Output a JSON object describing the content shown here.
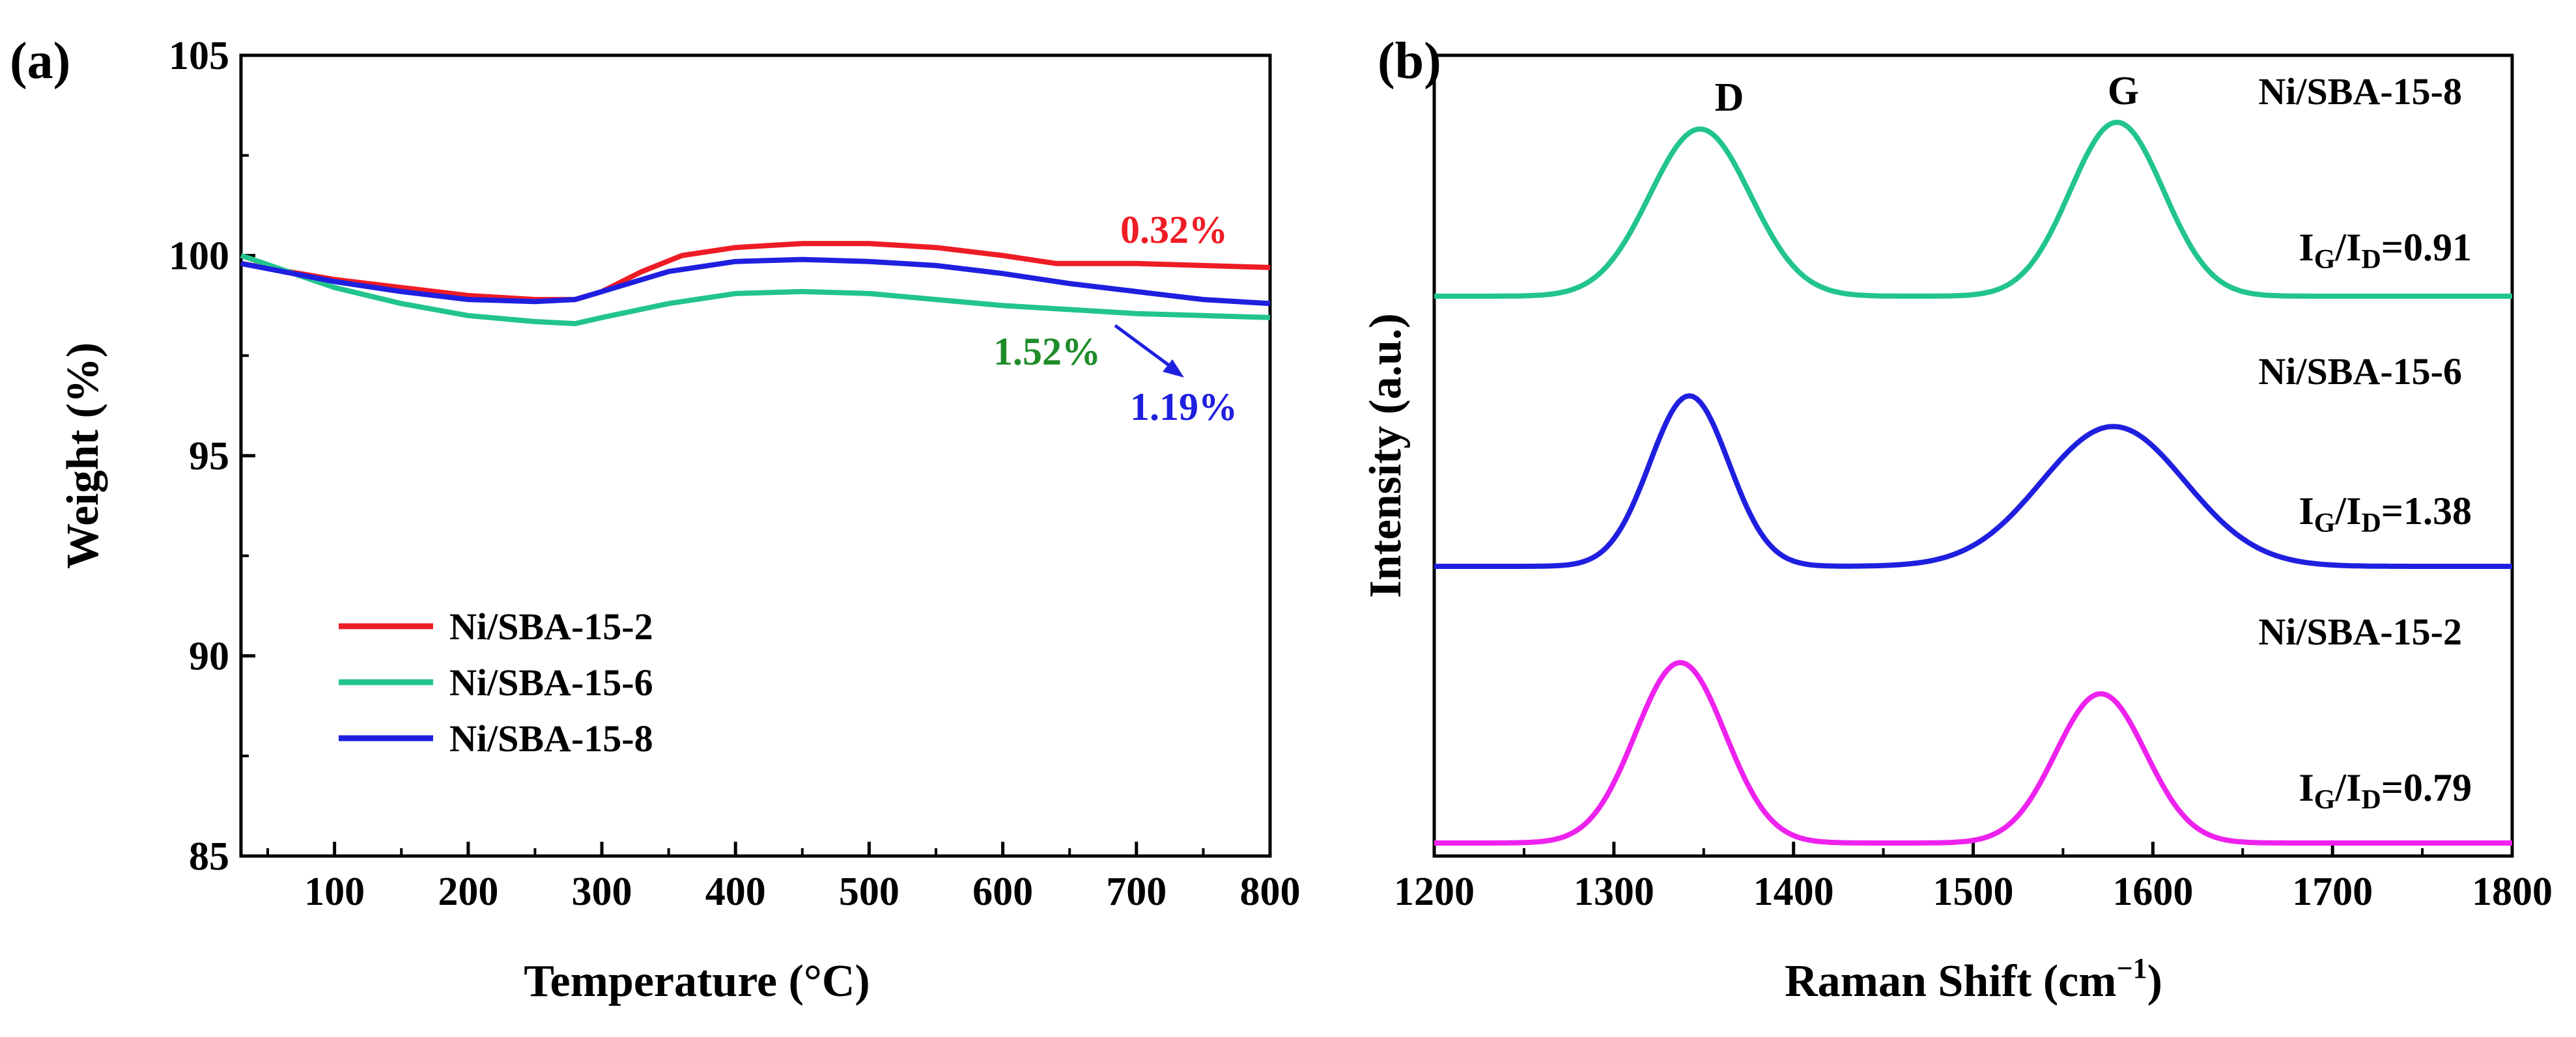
{
  "colors": {
    "Ni/SBA-15-2": "#ee1c25",
    "Ni/SBA-15-6": "#22c48e",
    "Ni/SBA-15-8": "#1f1fe0",
    "raman_2": "#ee22ee",
    "annot_red": "#ee1c25",
    "annot_green": "#1f8c2a",
    "annot_blue": "#1f1fe0"
  },
  "chart_data": [
    {
      "panel_label": "(a)",
      "type": "line",
      "xlabel": "Temperature (°C)",
      "ylabel": "Weight (%)",
      "xlim": [
        30,
        800
      ],
      "ylim": [
        85,
        105
      ],
      "xticks": [
        100,
        200,
        300,
        400,
        500,
        600,
        700,
        800
      ],
      "yticks": [
        85,
        90,
        95,
        100,
        105
      ],
      "legend_position": "lower-left",
      "series": [
        {
          "name": "Ni/SBA-15-2",
          "x": [
            30,
            100,
            150,
            200,
            250,
            280,
            300,
            330,
            360,
            400,
            450,
            500,
            550,
            600,
            640,
            700,
            750,
            800
          ],
          "y": [
            99.8,
            99.4,
            99.2,
            99.0,
            98.9,
            98.9,
            99.1,
            99.6,
            100.0,
            100.2,
            100.3,
            100.3,
            100.2,
            100.0,
            99.8,
            99.8,
            99.75,
            99.7
          ]
        },
        {
          "name": "Ni/SBA-15-6",
          "x": [
            30,
            100,
            150,
            200,
            250,
            280,
            300,
            350,
            400,
            450,
            500,
            550,
            600,
            650,
            700,
            750,
            800
          ],
          "y": [
            100.0,
            99.2,
            98.8,
            98.5,
            98.35,
            98.3,
            98.45,
            98.8,
            99.05,
            99.1,
            99.05,
            98.9,
            98.75,
            98.65,
            98.55,
            98.5,
            98.45
          ]
        },
        {
          "name": "Ni/SBA-15-8",
          "x": [
            30,
            100,
            150,
            200,
            250,
            280,
            300,
            350,
            400,
            450,
            500,
            550,
            600,
            650,
            700,
            750,
            800
          ],
          "y": [
            99.8,
            99.35,
            99.1,
            98.9,
            98.85,
            98.9,
            99.1,
            99.6,
            99.85,
            99.9,
            99.85,
            99.75,
            99.55,
            99.3,
            99.1,
            98.9,
            98.8
          ]
        }
      ],
      "annotations": [
        {
          "text": "0.32%",
          "color_key": "annot_red"
        },
        {
          "text": "1.52%",
          "color_key": "annot_green"
        },
        {
          "text": "1.19%",
          "color_key": "annot_blue"
        }
      ]
    },
    {
      "panel_label": "(b)",
      "type": "line",
      "xlabel": "Raman Shift (cm",
      "xlabel_sup": "−1",
      "xlabel_close": ")",
      "ylabel": "Intensity (a.u.)",
      "xlim": [
        1200,
        1800
      ],
      "xticks": [
        1200,
        1300,
        1400,
        1500,
        1600,
        1700,
        1800
      ],
      "peak_labels": {
        "D": "D",
        "G": "G"
      },
      "series": [
        {
          "name": "Ni/SBA-15-8",
          "color_key": "Ni/SBA-15-6",
          "offset": 2.0,
          "peaks": [
            {
              "center": 1348,
              "height": 0.98,
              "width": 28
            },
            {
              "center": 1580,
              "height": 1.02,
              "width": 26
            }
          ],
          "ratio": {
            "I": "I",
            "G": "G",
            "slash": "/I",
            "D": "D",
            "value": "=0.91"
          }
        },
        {
          "name": "Ni/SBA-15-6",
          "color_key": "Ni/SBA-15-8",
          "offset": 1.0,
          "peaks": [
            {
              "center": 1342,
              "height": 1.0,
              "width": 22
            },
            {
              "center": 1578,
              "height": 0.82,
              "width": 40
            }
          ],
          "ratio": {
            "I": "I",
            "G": "G",
            "slash": "/I",
            "D": "D",
            "value": "=1.38"
          }
        },
        {
          "name": "Ni/SBA-15-2",
          "color_key": "raman_2",
          "offset": 0.0,
          "peaks": [
            {
              "center": 1337,
              "height": 1.1,
              "width": 25
            },
            {
              "center": 1571,
              "height": 0.91,
              "width": 25
            }
          ],
          "ratio": {
            "I": "I",
            "G": "G",
            "slash": "/I",
            "D": "D",
            "value": "=0.79"
          }
        }
      ]
    }
  ]
}
